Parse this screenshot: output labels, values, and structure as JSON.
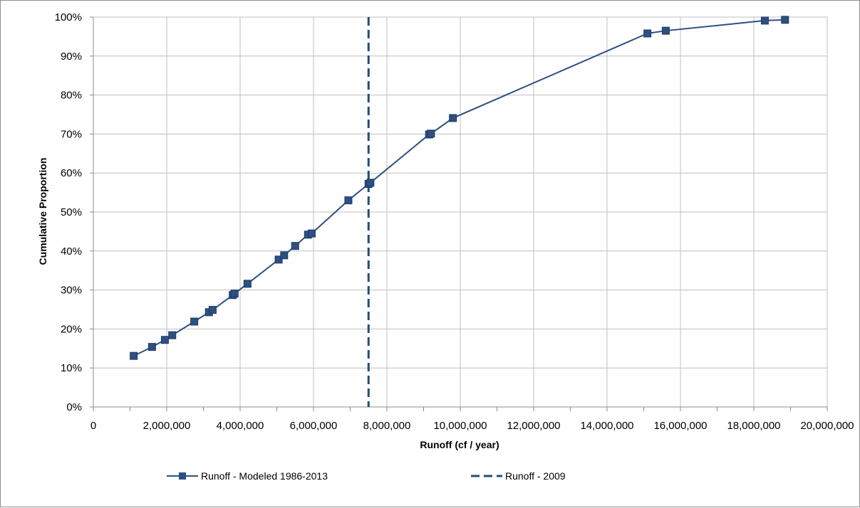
{
  "chart_data": {
    "type": "scatter",
    "xlabel": "Runoff (cf / year)",
    "ylabel": "Cumulative Proportion",
    "xlim": [
      0,
      20000000
    ],
    "ylim": [
      0,
      1
    ],
    "x_ticks": [
      0,
      2000000,
      4000000,
      6000000,
      8000000,
      10000000,
      12000000,
      14000000,
      16000000,
      18000000,
      20000000
    ],
    "x_tick_labels": [
      "0",
      "2,000,000",
      "4,000,000",
      "6,000,000",
      "8,000,000",
      "10,000,000",
      "12,000,000",
      "14,000,000",
      "16,000,000",
      "18,000,000",
      "20,000,000"
    ],
    "y_ticks": [
      0,
      0.1,
      0.2,
      0.3,
      0.4,
      0.5,
      0.6,
      0.7,
      0.8,
      0.9,
      1.0
    ],
    "y_tick_labels": [
      "0%",
      "10%",
      "20%",
      "30%",
      "40%",
      "50%",
      "60%",
      "70%",
      "80%",
      "90%",
      "100%"
    ],
    "grid": true,
    "legend_position": "bottom",
    "series": [
      {
        "name": "Runoff - Modeled 1986-2013",
        "style": "line-with-square-markers",
        "color": "#2e4f82",
        "x": [
          1100000,
          1600000,
          1950000,
          2150000,
          2750000,
          3150000,
          3250000,
          3800000,
          3850000,
          4200000,
          5050000,
          5200000,
          5500000,
          5850000,
          5950000,
          6950000,
          7500000,
          7550000,
          9150000,
          9200000,
          9800000,
          15100000,
          15600000,
          18300000,
          18850000
        ],
        "y": [
          0.131,
          0.154,
          0.172,
          0.184,
          0.219,
          0.243,
          0.249,
          0.287,
          0.291,
          0.316,
          0.378,
          0.389,
          0.413,
          0.442,
          0.445,
          0.53,
          0.572,
          0.575,
          0.699,
          0.701,
          0.741,
          0.958,
          0.965,
          0.991,
          0.993
        ]
      },
      {
        "name": "Runoff - 2009",
        "style": "dashed-vertical-line",
        "color": "#1f4e79",
        "x": [
          7500000,
          7500000
        ],
        "y": [
          0,
          1
        ]
      }
    ]
  }
}
